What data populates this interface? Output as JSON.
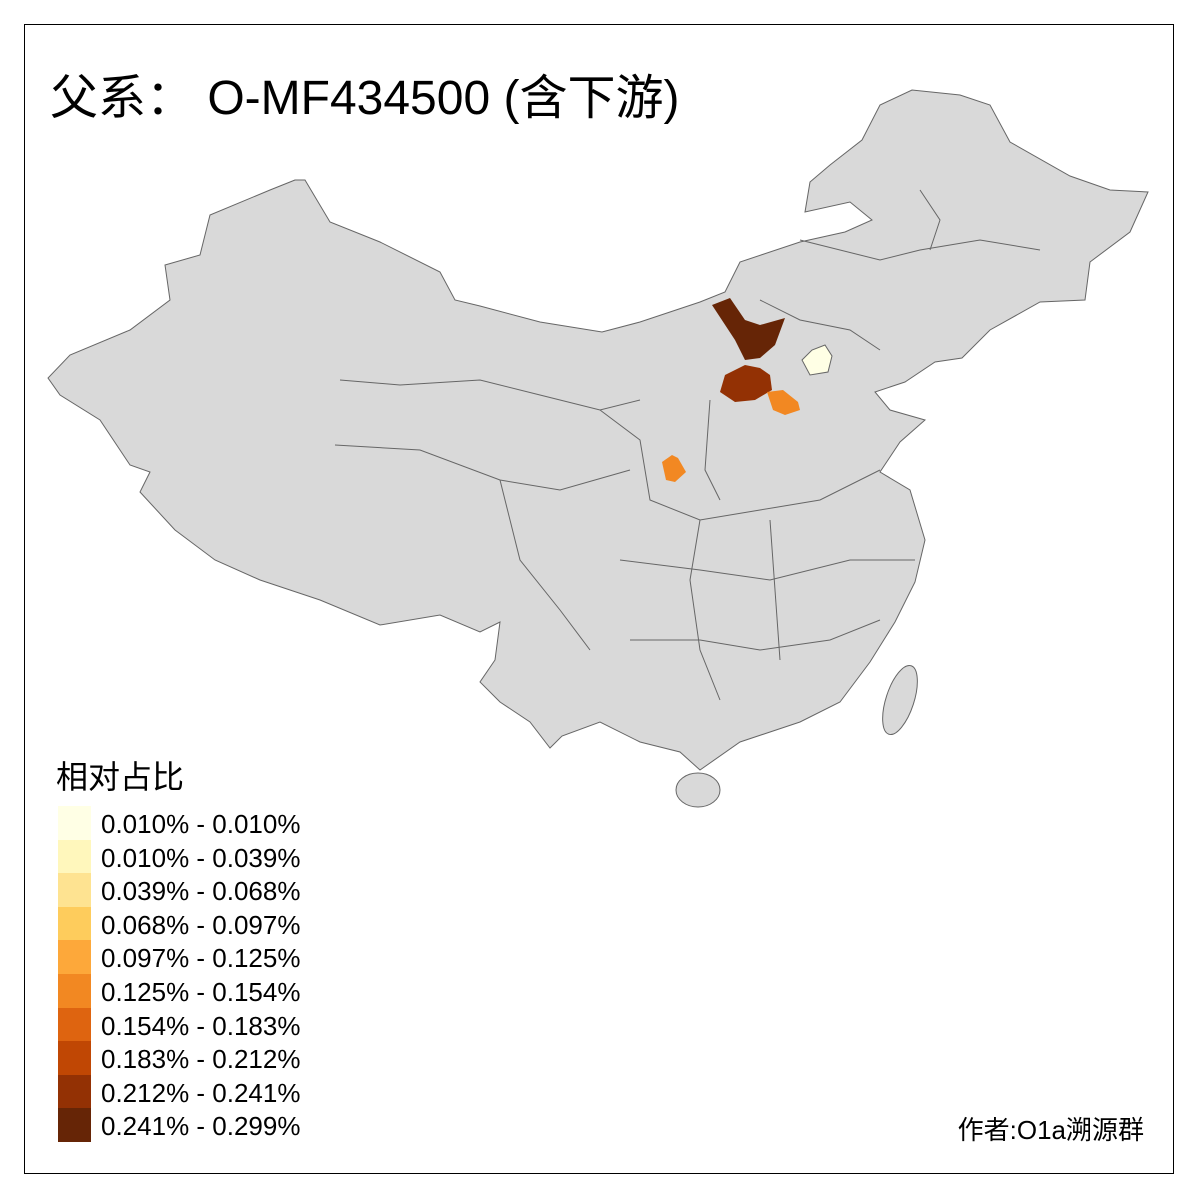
{
  "title": "父系： O-MF434500 (含下游)",
  "legend": {
    "title": "相对占比",
    "items": [
      {
        "label": "0.010% - 0.010%",
        "color": "#FFFFE5"
      },
      {
        "label": "0.010% - 0.039%",
        "color": "#FFF7BC"
      },
      {
        "label": "0.039% - 0.068%",
        "color": "#FEE391"
      },
      {
        "label": "0.068% - 0.097%",
        "color": "#FECC5C"
      },
      {
        "label": "0.097% - 0.125%",
        "color": "#FDA83A"
      },
      {
        "label": "0.125% - 0.154%",
        "color": "#F28822"
      },
      {
        "label": "0.154% - 0.183%",
        "color": "#DE6410"
      },
      {
        "label": "0.183% - 0.212%",
        "color": "#C04704"
      },
      {
        "label": "0.212% - 0.241%",
        "color": "#933104"
      },
      {
        "label": "0.241% - 0.299%",
        "color": "#662506"
      }
    ]
  },
  "map": {
    "base_color": "#D9D9D9",
    "border_color": "#666666"
  },
  "credit": "作者:O1a溯源群"
}
